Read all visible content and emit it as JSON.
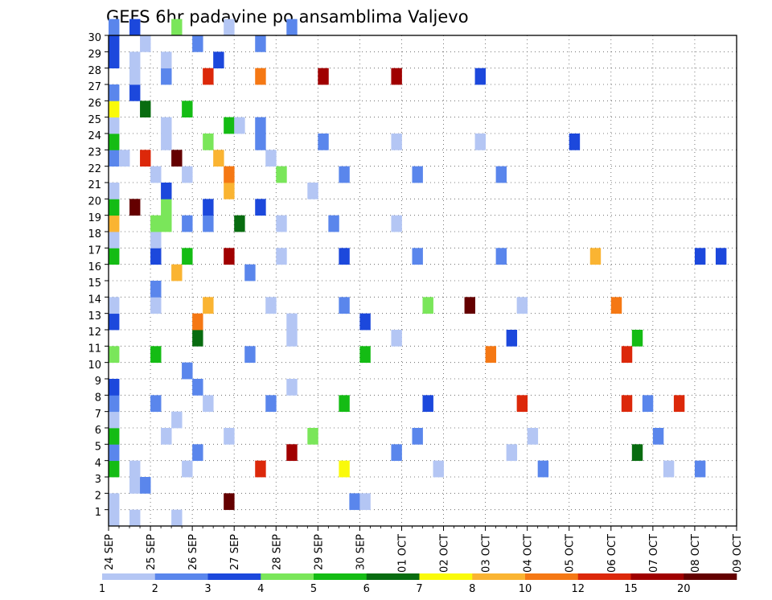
{
  "chart_data": {
    "type": "heatmap",
    "title": "GEFS 6hr padavine po ansamblima Valjevo",
    "x_tick_labels": [
      "24 SEP",
      "25 SEP",
      "26 SEP",
      "27 SEP",
      "28 SEP",
      "29 SEP",
      "30 SEP",
      "01 OCT",
      "02 OCT",
      "03 OCT",
      "04 OCT",
      "05 OCT",
      "06 OCT",
      "07 OCT",
      "08 OCT",
      "09 OCT"
    ],
    "y_tick_labels": [
      "1",
      "2",
      "3",
      "4",
      "5",
      "6",
      "7",
      "8",
      "9",
      "10",
      "11",
      "12",
      "13",
      "14",
      "15",
      "16",
      "17",
      "18",
      "19",
      "20",
      "21",
      "22",
      "23",
      "24",
      "25",
      "26",
      "27",
      "28",
      "29",
      "30"
    ],
    "x_step_hours": 6,
    "x_range_steps": [
      0,
      60
    ],
    "y_range": [
      0,
      30
    ],
    "grid": true,
    "colorbar": {
      "labels": [
        "1",
        "2",
        "3",
        "4",
        "5",
        "6",
        "7",
        "8",
        "10",
        "12",
        "15",
        "20"
      ],
      "colors": [
        "#b4c6f4",
        "#5a86ec",
        "#1c48dc",
        "#7ae65a",
        "#14bc14",
        "#086c10",
        "#fafa0a",
        "#fab432",
        "#f57814",
        "#dc280a",
        "#a00000",
        "#640000"
      ]
    },
    "cells": [
      [
        0,
        2,
        30
      ],
      [
        2,
        3,
        30
      ],
      [
        4,
        4,
        30
      ],
      [
        5,
        1,
        30
      ],
      [
        6,
        2,
        30
      ],
      [
        0,
        3,
        29
      ],
      [
        3,
        1,
        29
      ],
      [
        5,
        2,
        29
      ],
      [
        6,
        2,
        29
      ],
      [
        0,
        3,
        28
      ],
      [
        2,
        1,
        28
      ],
      [
        3,
        1,
        28
      ],
      [
        5,
        3,
        28
      ],
      [
        2,
        1,
        27
      ],
      [
        3,
        2,
        27
      ],
      [
        4,
        10,
        27
      ],
      [
        5,
        9,
        27
      ],
      [
        6,
        11,
        27
      ],
      [
        7,
        11,
        27
      ],
      [
        8,
        3,
        27
      ],
      [
        0,
        2,
        26
      ],
      [
        2,
        3,
        26
      ],
      [
        0,
        7,
        25
      ],
      [
        3,
        6,
        25
      ],
      [
        4,
        5,
        25
      ],
      [
        0,
        1,
        24
      ],
      [
        5,
        1,
        24
      ],
      [
        6,
        5,
        24
      ],
      [
        1,
        1,
        24
      ],
      [
        2,
        2,
        24
      ],
      [
        0,
        5,
        23
      ],
      [
        5,
        1,
        23
      ],
      [
        4,
        4,
        23
      ],
      [
        5,
        2,
        23
      ],
      [
        6,
        2,
        23
      ],
      [
        7,
        1,
        23
      ],
      [
        8,
        1,
        23
      ],
      [
        9,
        3,
        23
      ],
      [
        0,
        2,
        22
      ],
      [
        1,
        1,
        22
      ],
      [
        2,
        10,
        22
      ],
      [
        3,
        12,
        22
      ],
      [
        4,
        8,
        22
      ],
      [
        5,
        1,
        22
      ],
      [
        4,
        1,
        21
      ],
      [
        3,
        1,
        21
      ],
      [
        4,
        9,
        21
      ],
      [
        5,
        4,
        21
      ],
      [
        6,
        2,
        21
      ],
      [
        7,
        2,
        21
      ],
      [
        8,
        2,
        21
      ],
      [
        0,
        1,
        20
      ],
      [
        5,
        3,
        20
      ],
      [
        6,
        8,
        20
      ],
      [
        8,
        1,
        20
      ],
      [
        0,
        5,
        19
      ],
      [
        2,
        12,
        19
      ],
      [
        3,
        4,
        19
      ],
      [
        4,
        3,
        19
      ],
      [
        5,
        3,
        19
      ],
      [
        0,
        8,
        18
      ],
      [
        4,
        4,
        18
      ],
      [
        1,
        4,
        18
      ],
      [
        2,
        2,
        18
      ],
      [
        2,
        2,
        18
      ],
      [
        3,
        6,
        18
      ],
      [
        4,
        1,
        18
      ],
      [
        5,
        2,
        18
      ],
      [
        6,
        1,
        18
      ],
      [
        0,
        1,
        17
      ],
      [
        4,
        1,
        17
      ],
      [
        0,
        5,
        16
      ],
      [
        4,
        3,
        16
      ],
      [
        3,
        5,
        16
      ],
      [
        4,
        11,
        16
      ],
      [
        5,
        1,
        16
      ],
      [
        6,
        3,
        16
      ],
      [
        7,
        2,
        16
      ],
      [
        8,
        2,
        16
      ],
      [
        9,
        8,
        16
      ],
      [
        10,
        3,
        16
      ],
      [
        2,
        3,
        16
      ],
      [
        4,
        12,
        16
      ],
      [
        5,
        7,
        16
      ],
      [
        6,
        2,
        16
      ],
      [
        1,
        7,
        16
      ],
      [
        2,
        1,
        16
      ],
      [
        3,
        8,
        16
      ],
      [
        6,
        8,
        15
      ],
      [
        7,
        2,
        15
      ],
      [
        4,
        2,
        14
      ],
      [
        0,
        1,
        13
      ],
      [
        4,
        1,
        13
      ],
      [
        5,
        8,
        13
      ],
      [
        6,
        1,
        13
      ],
      [
        7,
        2,
        13
      ],
      [
        8,
        4,
        13
      ],
      [
        4,
        12,
        13
      ],
      [
        5,
        1,
        13
      ],
      [
        9,
        9,
        13
      ],
      [
        0,
        3,
        12
      ],
      [
        8,
        9,
        12
      ],
      [
        9,
        1,
        12
      ],
      [
        7,
        3,
        12
      ],
      [
        8,
        6,
        11
      ],
      [
        9,
        1,
        11
      ],
      [
        10,
        1,
        11
      ],
      [
        11,
        3,
        11
      ],
      [
        12,
        5,
        11
      ],
      [
        0,
        4,
        10
      ],
      [
        4,
        5,
        10
      ],
      [
        9,
        2,
        10
      ],
      [
        11,
        5,
        10
      ],
      [
        12,
        9,
        10
      ],
      [
        13,
        10,
        10
      ],
      [
        14,
        3,
        10
      ],
      [
        4,
        5,
        10
      ],
      [
        5,
        1,
        10
      ],
      [
        6,
        1,
        10
      ],
      [
        7,
        4,
        10
      ],
      [
        7,
        1,
        9
      ],
      [
        0,
        2,
        9
      ],
      [
        0,
        3,
        8
      ],
      [
        8,
        2,
        8
      ],
      [
        9,
        1,
        8
      ],
      [
        0,
        2,
        7
      ],
      [
        4,
        2,
        7
      ],
      [
        5,
        1,
        7
      ],
      [
        6,
        2,
        7
      ],
      [
        7,
        5,
        7
      ],
      [
        8,
        3,
        7
      ],
      [
        9,
        10,
        7
      ],
      [
        10,
        10,
        7
      ],
      [
        2,
        2,
        7
      ],
      [
        3,
        10,
        7
      ],
      [
        0,
        1,
        6
      ],
      [
        6,
        1,
        6
      ],
      [
        0,
        5,
        5
      ],
      [
        5,
        1,
        5
      ],
      [
        6,
        1,
        5
      ],
      [
        8,
        4,
        5
      ],
      [
        10,
        2,
        5
      ],
      [
        11,
        1,
        5
      ],
      [
        12,
        2,
        5
      ],
      [
        13,
        1,
        5
      ],
      [
        2,
        2,
        5
      ],
      [
        3,
        3,
        5
      ],
      [
        4,
        1,
        5
      ],
      [
        0,
        2,
        4
      ],
      [
        8,
        2,
        4
      ],
      [
        9,
        11,
        4
      ],
      [
        10,
        2,
        4
      ],
      [
        11,
        1,
        4
      ],
      [
        12,
        6,
        4
      ],
      [
        13,
        5,
        4
      ],
      [
        6,
        6,
        4
      ],
      [
        8,
        1,
        4
      ],
      [
        0,
        5,
        3
      ],
      [
        2,
        1,
        3
      ],
      [
        5,
        1,
        3
      ],
      [
        7,
        10,
        3
      ],
      [
        8,
        7,
        3
      ],
      [
        9,
        1,
        3
      ],
      [
        10,
        2,
        3
      ],
      [
        12,
        1,
        3
      ],
      [
        3,
        2,
        3
      ],
      [
        4,
        8,
        3
      ],
      [
        1,
        1,
        3
      ],
      [
        2,
        1,
        2
      ],
      [
        1,
        2,
        2
      ],
      [
        0,
        1,
        1
      ],
      [
        11,
        12,
        1
      ],
      [
        12,
        2,
        1
      ],
      [
        1,
        1,
        1
      ],
      [
        0,
        1,
        0
      ],
      [
        2,
        1,
        0
      ],
      [
        4,
        1,
        0
      ]
    ]
  }
}
